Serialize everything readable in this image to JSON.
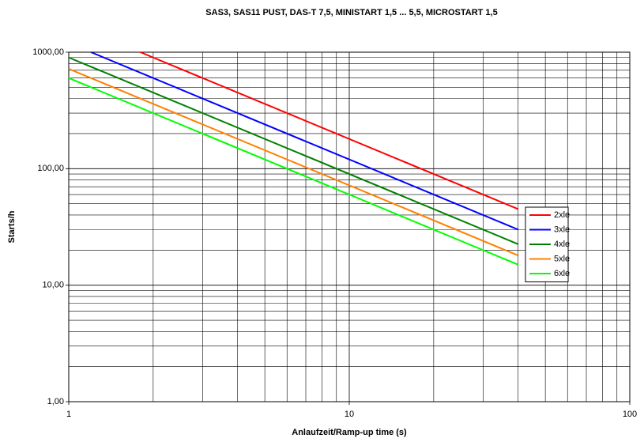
{
  "chart_data": {
    "type": "line",
    "title": "SAS3, SAS11 PUST, DAS-T 7,5, MINISTART 1,5 ... 5,5, MICROSTART 1,5",
    "xlabel": "Anlaufzeit/Ramp-up time (s)",
    "ylabel": "Starts/h",
    "xscale": "log",
    "yscale": "log",
    "xlim": [
      1,
      100
    ],
    "ylim": [
      1,
      1000
    ],
    "xticks": [
      1,
      10,
      100
    ],
    "yticks": [
      {
        "value": 1,
        "label": "1,00"
      },
      {
        "value": 10,
        "label": "10,00"
      },
      {
        "value": 100,
        "label": "100,00"
      },
      {
        "value": 1000,
        "label": "1000,00"
      }
    ],
    "grid": true,
    "legend": "right",
    "series": [
      {
        "name": "2xle",
        "color": "#ff0000",
        "x": [
          1.8,
          40
        ],
        "values": [
          1000,
          45
        ]
      },
      {
        "name": "3xle",
        "color": "#0000ff",
        "x": [
          1.2,
          40
        ],
        "values": [
          1000,
          30
        ]
      },
      {
        "name": "4xle",
        "color": "#008000",
        "x": [
          1,
          40
        ],
        "values": [
          900,
          22.5
        ]
      },
      {
        "name": "5xle",
        "color": "#ff8000",
        "x": [
          1,
          40
        ],
        "values": [
          720,
          18
        ]
      },
      {
        "name": "6xle",
        "color": "#00ff00",
        "x": [
          1,
          40
        ],
        "values": [
          600,
          15
        ]
      }
    ]
  }
}
